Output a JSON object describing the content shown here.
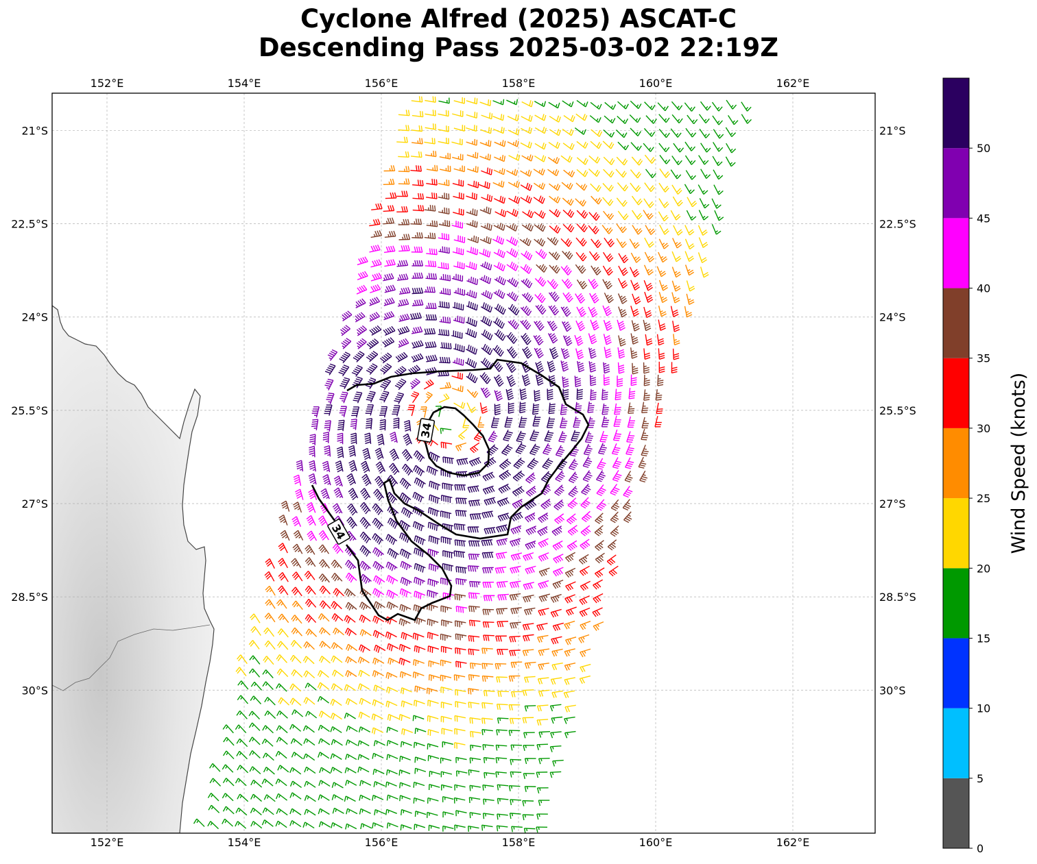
{
  "title": {
    "line1": "Cyclone Alfred (2025) ASCAT-C",
    "line2": "Descending Pass 2025-03-02 22:19Z"
  },
  "map": {
    "extent": {
      "lon_min": 151.2,
      "lon_max": 163.2,
      "lat_min": -32.3,
      "lat_max": -20.4
    },
    "lon_ticks": [
      {
        "value": 152,
        "label": "152°E"
      },
      {
        "value": 154,
        "label": "154°E"
      },
      {
        "value": 156,
        "label": "156°E"
      },
      {
        "value": 158,
        "label": "158°E"
      },
      {
        "value": 160,
        "label": "160°E"
      },
      {
        "value": 162,
        "label": "162°E"
      }
    ],
    "lat_ticks": [
      {
        "value": -21,
        "label": "21°S"
      },
      {
        "value": -22.5,
        "label": "22.5°S"
      },
      {
        "value": -24,
        "label": "24°S"
      },
      {
        "value": -25.5,
        "label": "25.5°S"
      },
      {
        "value": -27,
        "label": "27°S"
      },
      {
        "value": -28.5,
        "label": "28.5°S"
      },
      {
        "value": -30,
        "label": "30°S"
      }
    ],
    "gridlines": true,
    "storm_center": {
      "lon": 157.0,
      "lat": -25.6
    },
    "contour_label": "34",
    "contour_value_kt": 34
  },
  "colorbar": {
    "label": "Wind Speed (knots)",
    "ticks": [
      "0",
      "5",
      "10",
      "15",
      "20",
      "25",
      "30",
      "35",
      "40",
      "45",
      "50"
    ],
    "bins": [
      {
        "from": 0,
        "to": 5,
        "color": "#555555"
      },
      {
        "from": 5,
        "to": 10,
        "color": "#00bfff"
      },
      {
        "from": 10,
        "to": 15,
        "color": "#0033ff"
      },
      {
        "from": 15,
        "to": 20,
        "color": "#009900"
      },
      {
        "from": 20,
        "to": 25,
        "color": "#ffd700"
      },
      {
        "from": 25,
        "to": 30,
        "color": "#ff8c00"
      },
      {
        "from": 30,
        "to": 35,
        "color": "#ff0000"
      },
      {
        "from": 35,
        "to": 40,
        "color": "#803f2a"
      },
      {
        "from": 40,
        "to": 45,
        "color": "#ff00ff"
      },
      {
        "from": 45,
        "to": 50,
        "color": "#8000b0"
      },
      {
        "from": 50,
        "to": 55,
        "color": "#2b0060"
      }
    ]
  },
  "colors": {
    "coast": "#444444",
    "land": "#e8e8e8",
    "contour": "#000000",
    "grid": "#b0b0b0"
  }
}
